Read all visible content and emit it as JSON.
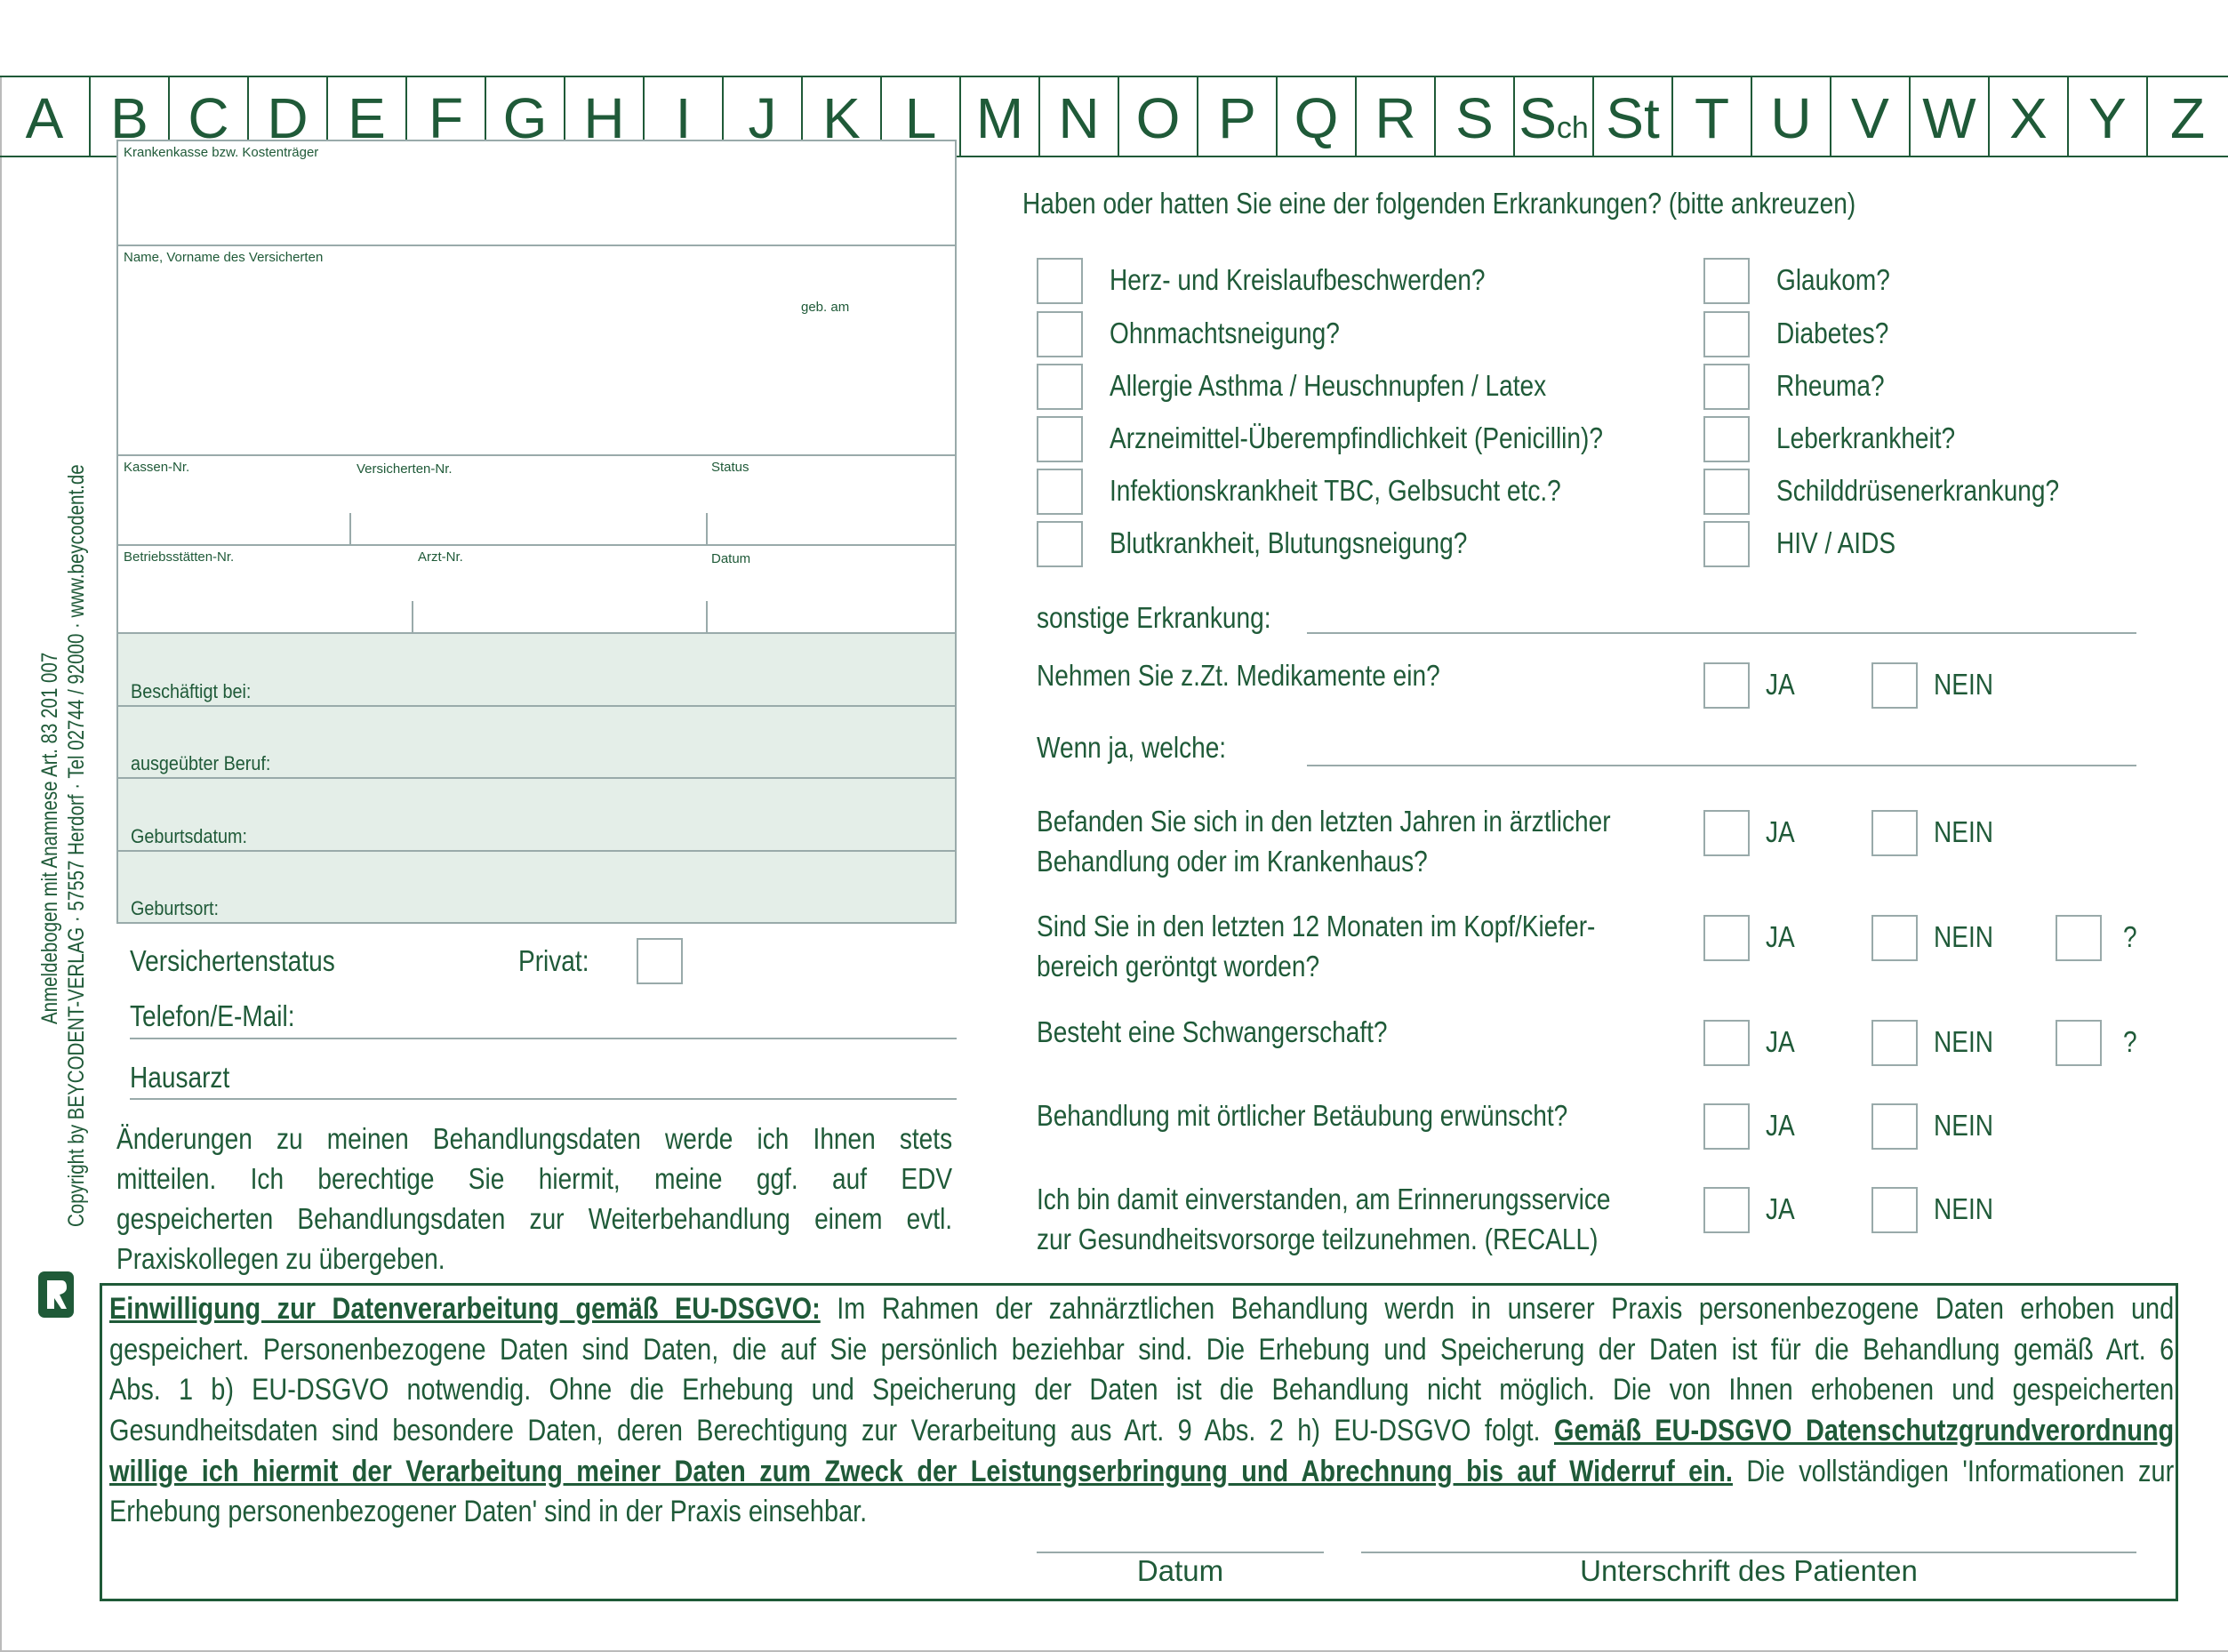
{
  "colors": {
    "primary": "#1f5a38",
    "field_shade": "#e4eee8",
    "border": "#99aaaa"
  },
  "alphabet": [
    "A",
    "B",
    "C",
    "D",
    "E",
    "F",
    "G",
    "H",
    "I",
    "J",
    "K",
    "L",
    "M",
    "N",
    "O",
    "P",
    "Q",
    "R",
    "S",
    "Sch",
    "St",
    "T",
    "U",
    "V",
    "W",
    "X",
    "Y",
    "Z"
  ],
  "side": {
    "line1": "Anmeldebogen mit Anamnese Art. 83 201 007",
    "line2": "Copyright by BEYCODENT-VERLAG · 57557 Herdorf · Tel 02744 / 92000 · www.beycodent.de",
    "logo_icon": "beycodent-logo"
  },
  "card": {
    "krankenkasse": "Krankenkasse bzw. Kostenträger",
    "name": "Name, Vorname des Versicherten",
    "geb": "geb. am",
    "kassen_nr": "Kassen-Nr.",
    "versicherten_nr": "Versicherten-Nr.",
    "status": "Status",
    "betriebsstaetten_nr": "Betriebsstätten-Nr.",
    "arzt_nr": "Arzt-Nr.",
    "datum": "Datum"
  },
  "personal": {
    "beschaeftigt": "Beschäftigt bei:",
    "beruf": "ausgeübter Beruf:",
    "geburtsdatum": "Geburtsdatum:",
    "geburtsort": "Geburtsort:",
    "versichertenstatus": "Versichertenstatus",
    "privat": "Privat:",
    "telefon": "Telefon/E-Mail:",
    "hausarzt": "Hausarzt"
  },
  "notice_lines": [
    "Änderungen zu meinen Behandlungsdaten werde ich Ihnen stets",
    "mitteilen. Ich berechtige Sie hiermit, meine ggf. auf EDV",
    "gespeicherten Behandlungsdaten zur Weiterbehandlung einem evtl.",
    "Praxiskollegen zu übergeben."
  ],
  "illness": {
    "heading": "Haben oder hatten Sie eine der folgenden Erkrankungen? (bitte ankreuzen)",
    "left": [
      "Herz- und Kreislaufbeschwerden?",
      "Ohnmachtsneigung?",
      "Allergie Asthma / Heuschnupfen / Latex",
      "Arzneimittel-Überempfindlichkeit (Penicillin)?",
      "Infektionskrankheit TBC, Gelbsucht etc.?",
      "Blutkrankheit, Blutungsneigung?"
    ],
    "right": [
      "Glaukom?",
      "Diabetes?",
      "Rheuma?",
      "Leberkrankheit?",
      "Schilddrüsenerkrankung?",
      "HIV / AIDS"
    ],
    "sonstige": "sonstige Erkrankung:"
  },
  "questions": {
    "ja": "JA",
    "nein": "NEIN",
    "unknown": "?",
    "medikamente": "Nehmen Sie z.Zt. Medikamente ein?",
    "welche": "Wenn ja, welche:",
    "behandlung_1": "Befanden Sie sich in den letzten Jahren in ärztlicher",
    "behandlung_2": "Behandlung oder im Krankenhaus?",
    "roentgen_1": "Sind Sie in den letzten 12 Monaten im Kopf/Kiefer-",
    "roentgen_2": "bereich geröntgt worden?",
    "schwanger": "Besteht eine Schwangerschaft?",
    "betaeubung": "Behandlung mit örtlicher Betäubung erwünscht?",
    "recall_1": "Ich bin damit einverstanden, am Erinnerungsservice",
    "recall_2": "zur Gesundheitsvorsorge teilzunehmen. (RECALL)"
  },
  "consent": {
    "l1_bold": "Einwilligung zur Datenverarbeitung gemäß EU-DSGVO:",
    "l1_rest": " Im Rahmen der zahnärztlichen Behandlung werdn in unserer Praxis personenbezogene Daten erhoben und",
    "l2": "gespeichert. Personenbezogene Daten sind Daten, die auf Sie persönlich beziehbar sind. Die Erhebung und Speicherung der Daten ist für die Behandlung gemäß Art. 6",
    "l3": "Abs. 1 b) EU-DSGVO notwendig. Ohne die Erhebung und Speicherung der Daten ist die Behandlung nicht möglich. Die von Ihnen erhobenen und gespeicherten",
    "l4_rest": "Gesundheitsdaten sind besondere Daten, deren Berechtigung zur Verarbeitung aus Art. 9 Abs. 2 h) EU-DSGVO folgt. ",
    "l4_bold": "Gemäß EU-DSGVO Datenschutzgrundverordnung",
    "l5_bold": "willige ich hiermit der Verarbeitung meiner Daten zum Zweck der Leistungserbringung und Abrechnung bis auf Widerruf ein.",
    "l5_rest": " Die vollständigen 'Informationen zur",
    "l6": "Erhebung personenbezogener Daten' sind in der Praxis einsehbar.",
    "datum": "Datum",
    "unterschrift": "Unterschrift des Patienten"
  }
}
